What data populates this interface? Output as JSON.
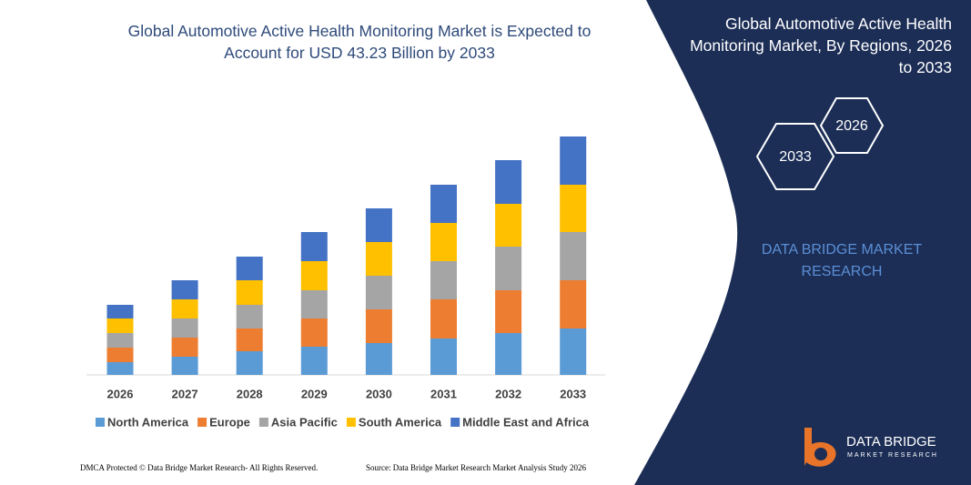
{
  "chart_data": {
    "type": "bar",
    "stacked": true,
    "title": "Global Automotive Active Health Monitoring Market is Expected to Account for USD 43.23 Billion by 2033",
    "categories": [
      "2026",
      "2027",
      "2028",
      "2029",
      "2030",
      "2031",
      "2032",
      "2033"
    ],
    "series": [
      {
        "name": "North America",
        "color": "#5b9bd5",
        "values": [
          14,
          20,
          26,
          31,
          35,
          40,
          46,
          51
        ]
      },
      {
        "name": "Europe",
        "color": "#ed7d31",
        "values": [
          16,
          21,
          25,
          31,
          37,
          43,
          47,
          53
        ]
      },
      {
        "name": "Asia Pacific",
        "color": "#a5a5a5",
        "values": [
          16,
          21,
          26,
          31,
          37,
          42,
          48,
          53
        ]
      },
      {
        "name": "South America",
        "color": "#ffc000",
        "values": [
          16,
          21,
          27,
          32,
          37,
          42,
          47,
          52
        ]
      },
      {
        "name": "Middle East and Africa",
        "color": "#4472c4",
        "values": [
          15,
          21,
          26,
          32,
          37,
          42,
          48,
          53
        ]
      }
    ],
    "ylim": [
      0,
      270
    ]
  },
  "panel": {
    "title": "Global Automotive Active Health Monitoring Market, By Regions, 2026 to 2033",
    "hex_start": "2026",
    "hex_end": "2033",
    "brand": "DATA BRIDGE MARKET RESEARCH"
  },
  "logo": {
    "name": "DATA BRIDGE",
    "tagline": "MARKET RESEARCH"
  },
  "footer": {
    "left": "DMCA Protected © Data Bridge Market Research- All Rights Reserved.",
    "right": "Source: Data Bridge Market Research Market Analysis Study 2026"
  }
}
